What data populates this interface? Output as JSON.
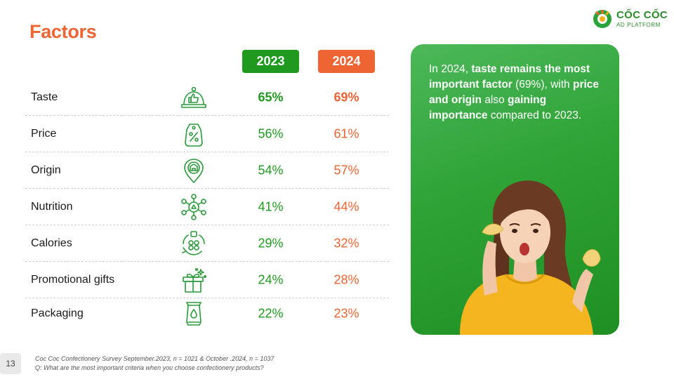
{
  "page": {
    "title": "Factors",
    "number": "13"
  },
  "logo": {
    "name": "CỐC CỐC",
    "sub": "AD PLATFORM"
  },
  "years": {
    "a": "2023",
    "b": "2024"
  },
  "colors": {
    "green": "#1f9a1f",
    "orange": "#ee6433",
    "panel_green": "#2fa336"
  },
  "rows": [
    {
      "label": "Taste",
      "icon": "cloche-thumbs-up-icon",
      "v2023": "65%",
      "v2024": "69%"
    },
    {
      "label": "Price",
      "icon": "price-tag-percent-icon",
      "v2023": "56%",
      "v2024": "61%"
    },
    {
      "label": "Origin",
      "icon": "location-pin-building-icon",
      "v2023": "54%",
      "v2024": "57%"
    },
    {
      "label": "Nutrition",
      "icon": "nutrition-molecule-icon",
      "v2023": "41%",
      "v2024": "44%"
    },
    {
      "label": "Calories",
      "icon": "calories-cycle-icon",
      "v2023": "29%",
      "v2024": "32%"
    },
    {
      "label": "Promotional gifts",
      "icon": "gift-box-icon",
      "v2023": "24%",
      "v2024": "28%"
    },
    {
      "label": "Packaging",
      "icon": "snack-package-icon",
      "v2023": "22%",
      "v2024": "23%"
    }
  ],
  "panel": {
    "t1": "In 2024, ",
    "t2": "taste remains the most important factor",
    "t3": " (69%), with ",
    "t4": "price and origin",
    "t5": " also ",
    "t6": "gaining importance",
    "t7": " compared to 2023."
  },
  "footer": {
    "source": "Coc Coc Confectionery Survey September.2023, n = 1021 & October .2024, n = 1037",
    "question": "Q: What are the most important criteria when you choose confectionery products?"
  }
}
